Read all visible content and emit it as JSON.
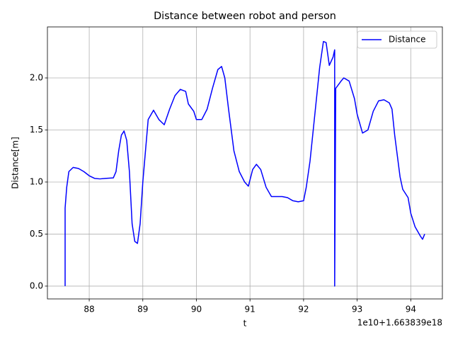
{
  "chart_data": {
    "type": "line",
    "title": "Distance between robot and person",
    "xlabel": "t",
    "ylabel": "Distance[m]",
    "x_offset_label": "1e10+1.663839e18",
    "x": [
      87.55,
      87.55,
      87.58,
      87.62,
      87.7,
      87.8,
      87.9,
      88.0,
      88.1,
      88.2,
      88.3,
      88.45,
      88.5,
      88.55,
      88.6,
      88.65,
      88.7,
      88.75,
      88.8,
      88.85,
      88.9,
      88.95,
      89.0,
      89.05,
      89.1,
      89.2,
      89.3,
      89.4,
      89.5,
      89.6,
      89.7,
      89.8,
      89.85,
      89.95,
      90.0,
      90.1,
      90.2,
      90.3,
      90.4,
      90.47,
      90.53,
      90.6,
      90.7,
      90.8,
      90.9,
      90.97,
      91.05,
      91.12,
      91.2,
      91.3,
      91.4,
      91.5,
      91.6,
      91.7,
      91.8,
      91.9,
      92.0,
      92.05,
      92.12,
      92.2,
      92.3,
      92.37,
      92.42,
      92.48,
      92.55,
      92.58,
      92.58,
      92.6,
      92.7,
      92.75,
      92.85,
      92.95,
      93.0,
      93.1,
      93.2,
      93.3,
      93.4,
      93.5,
      93.6,
      93.65,
      93.7,
      93.8,
      93.85,
      93.95,
      94.0,
      94.08,
      94.18,
      94.22,
      94.26
    ],
    "series": [
      {
        "name": "Distance",
        "color": "#0000ff",
        "values": [
          0.0,
          0.75,
          0.95,
          1.1,
          1.14,
          1.13,
          1.1,
          1.06,
          1.035,
          1.03,
          1.035,
          1.04,
          1.1,
          1.3,
          1.45,
          1.49,
          1.4,
          1.1,
          0.6,
          0.43,
          0.41,
          0.6,
          1.0,
          1.3,
          1.6,
          1.69,
          1.6,
          1.55,
          1.7,
          1.83,
          1.89,
          1.87,
          1.75,
          1.68,
          1.6,
          1.6,
          1.7,
          1.9,
          2.08,
          2.11,
          2.0,
          1.7,
          1.3,
          1.1,
          1.0,
          0.96,
          1.12,
          1.17,
          1.12,
          0.95,
          0.86,
          0.86,
          0.86,
          0.85,
          0.82,
          0.81,
          0.82,
          0.95,
          1.2,
          1.6,
          2.1,
          2.35,
          2.34,
          2.12,
          2.2,
          2.27,
          0.0,
          1.9,
          1.97,
          2.0,
          1.97,
          1.8,
          1.65,
          1.47,
          1.5,
          1.68,
          1.78,
          1.79,
          1.76,
          1.7,
          1.45,
          1.05,
          0.93,
          0.85,
          0.7,
          0.57,
          0.48,
          0.45,
          0.5
        ]
      }
    ],
    "xlim": [
      87.22,
      94.59
    ],
    "ylim": [
      -0.123,
      2.49
    ],
    "xticks": [
      88,
      89,
      90,
      91,
      92,
      93,
      94
    ],
    "yticks": [
      {
        "value": 0,
        "label": "0.0"
      },
      {
        "value": 0.5,
        "label": "0.5"
      },
      {
        "value": 1,
        "label": "1.0"
      },
      {
        "value": 1.5,
        "label": "1.5"
      },
      {
        "value": 2,
        "label": "2.0"
      }
    ],
    "grid": true,
    "legend": "upper right"
  }
}
